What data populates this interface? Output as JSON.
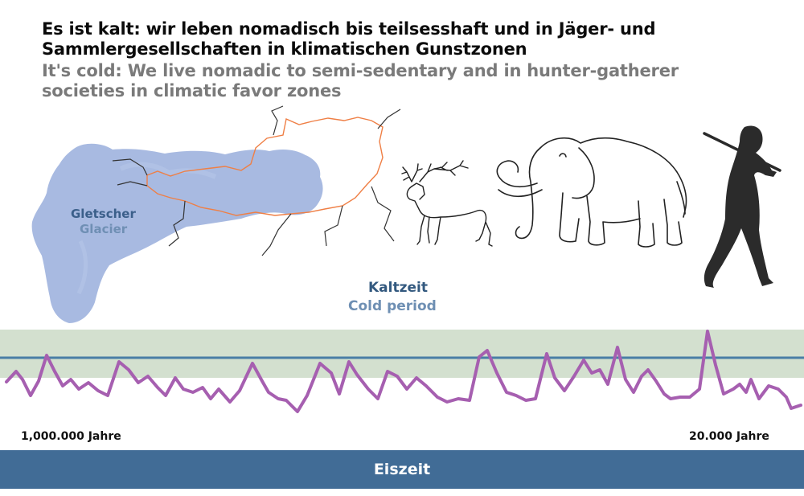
{
  "heading": {
    "german": "Es ist kalt: wir leben nomadisch bis teilsesshaft und in Jäger- und Sammlergesellschaften in klimatischen Gunstzonen",
    "english": "It's cold: We live nomadic to semi-sedentary and in hunter-gatherer societies in climatic favor zones"
  },
  "map": {
    "label_de": "Gletscher",
    "label_en": "Glacier"
  },
  "period": {
    "label_de": "Kaltzeit",
    "label_en": "Cold period"
  },
  "timeline": {
    "start_label": "1,000.000 Jahre",
    "end_label": "20.000 Jahre"
  },
  "era_bar": {
    "label": "Eiszeit"
  },
  "colors": {
    "glacier": "#9fb3de",
    "border_orange": "#ef7f45",
    "favor_band": "#d3e0cf",
    "threshold_line": "#4a7ea6",
    "climate_curve": "#a65fb0",
    "era_bar": "#416c96"
  },
  "icons": [
    "deer-drawing",
    "mammoth-drawing",
    "hunter-silhouette"
  ]
}
